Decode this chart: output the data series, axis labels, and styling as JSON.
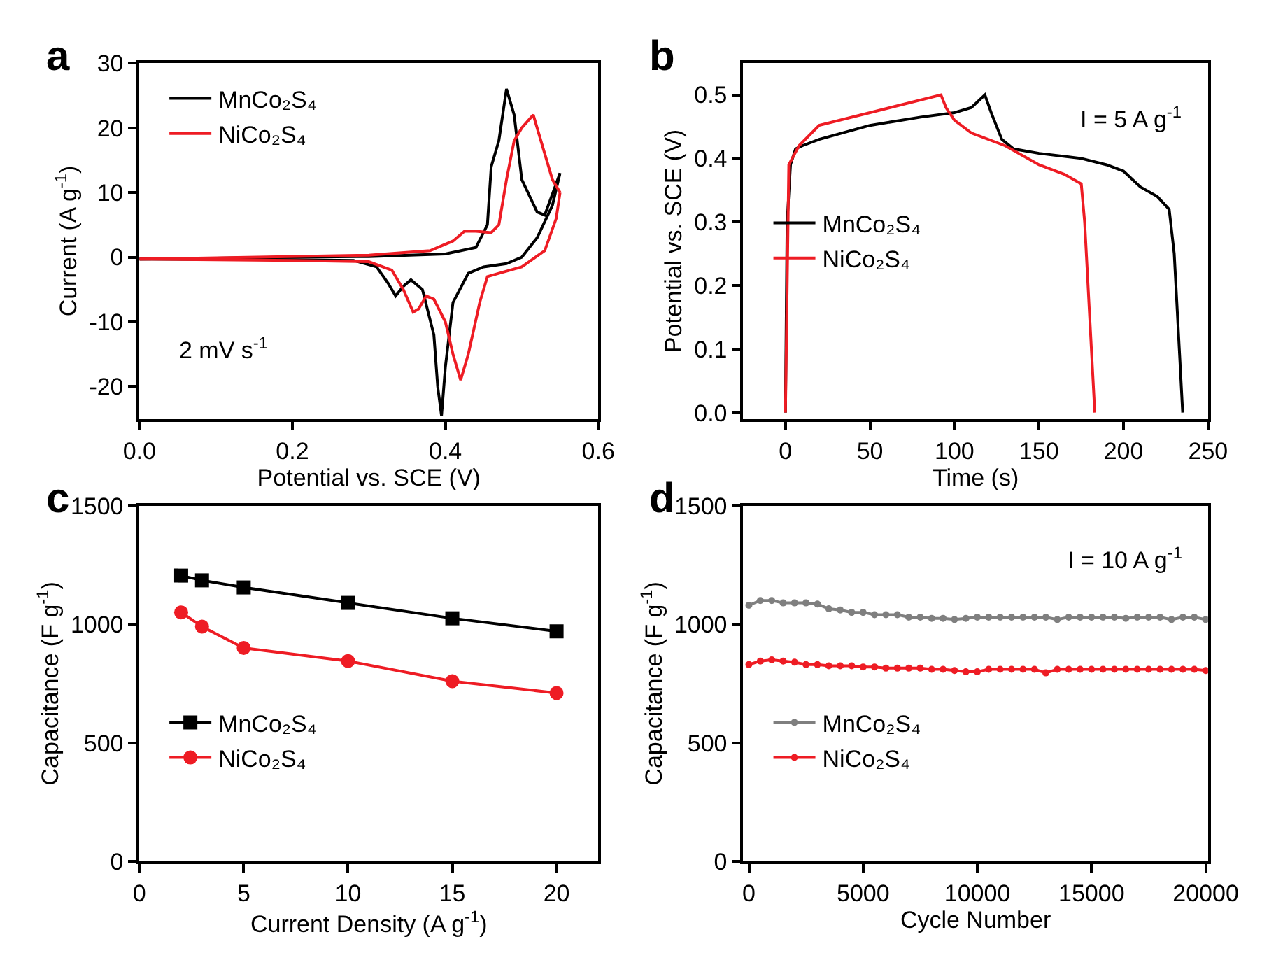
{
  "chart_data": [
    {
      "type": "line",
      "title": "a",
      "xlabel": "Potential vs. SCE (V)",
      "ylabel": "Current (A g$^{-1}$)",
      "xlim": [
        0,
        0.6
      ],
      "xticks": [
        {
          "value": 0,
          "label": "0.0"
        },
        {
          "value": 0.2,
          "label": "0.2"
        },
        {
          "value": 0.4,
          "label": "0.4"
        },
        {
          "value": 0.6,
          "label": "0.6"
        }
      ],
      "ylim": [
        -25,
        30
      ],
      "yticks": [
        -20,
        -10,
        0,
        10,
        20,
        30
      ],
      "legend": "top left",
      "annotations": [
        "2 mV s$^{-1}$"
      ],
      "series": [
        {
          "name": "MnCo₂S₄",
          "color": "#000000",
          "x": [
            0,
            0.2,
            0.3,
            0.4,
            0.44,
            0.455,
            0.46,
            0.47,
            0.48,
            0.49,
            0.5,
            0.52,
            0.53,
            0.55
          ],
          "values": [
            -0.3,
            0,
            0.1,
            0.5,
            1.5,
            5,
            14,
            18,
            26,
            22,
            12,
            7,
            6.5,
            13
          ]
        },
        {
          "color": "#000000",
          "x": [
            0,
            0.2,
            0.28,
            0.31,
            0.325,
            0.335,
            0.345,
            0.355,
            0.37,
            0.385,
            0.39,
            0.395,
            0.4,
            0.41,
            0.43,
            0.45,
            0.48,
            0.5,
            0.52,
            0.54,
            0.55
          ],
          "values": [
            -0.3,
            -0.4,
            -0.5,
            -1.5,
            -4,
            -6,
            -4.5,
            -3.5,
            -5,
            -12,
            -20,
            -24.5,
            -17,
            -7,
            -2.5,
            -1.5,
            -1,
            0,
            3,
            8,
            13
          ]
        },
        {
          "name": "NiCo₂S₄",
          "color": "#ee1c24",
          "x": [
            0,
            0.3,
            0.38,
            0.41,
            0.425,
            0.44,
            0.46,
            0.47,
            0.48,
            0.49,
            0.5,
            0.515,
            0.53,
            0.54,
            0.55
          ],
          "values": [
            -0.3,
            0.3,
            1,
            2.5,
            4,
            4,
            3.8,
            5,
            12,
            18,
            20,
            22,
            16,
            12,
            10
          ]
        },
        {
          "color": "#ee1c24",
          "x": [
            0,
            0.2,
            0.3,
            0.33,
            0.345,
            0.358,
            0.365,
            0.375,
            0.385,
            0.4,
            0.41,
            0.42,
            0.43,
            0.445,
            0.455,
            0.47,
            0.5,
            0.53,
            0.545,
            0.55
          ],
          "values": [
            -0.3,
            -0.5,
            -0.7,
            -2,
            -5,
            -8.5,
            -8,
            -6,
            -6.5,
            -10,
            -15,
            -19,
            -15,
            -7,
            -3,
            -2.5,
            -1.5,
            1,
            6,
            10
          ]
        }
      ]
    },
    {
      "type": "line",
      "title": "b",
      "xlabel": "Time (s)",
      "ylabel": "Potential vs. SCE (V)",
      "xlim": [
        -25,
        250
      ],
      "xticks": [
        0,
        50,
        100,
        150,
        200,
        250
      ],
      "ylim": [
        -0.01,
        0.55
      ],
      "yticks": [
        {
          "value": 0,
          "label": "0.0"
        },
        0.1,
        0.2,
        0.3,
        0.4,
        0.5
      ],
      "legend": "left",
      "annotations": [
        "I = 5 A g$^{-1}$"
      ],
      "series": [
        {
          "name": "MnCo₂S₄",
          "color": "#000000",
          "x": [
            0,
            1,
            3,
            6,
            10,
            20,
            50,
            80,
            100,
            110,
            118,
            122,
            128,
            135,
            150,
            175,
            190,
            200,
            210,
            220,
            227,
            230,
            233,
            235
          ],
          "values": [
            0,
            0.3,
            0.39,
            0.415,
            0.42,
            0.43,
            0.452,
            0.465,
            0.472,
            0.48,
            0.5,
            0.47,
            0.43,
            0.415,
            0.408,
            0.4,
            0.39,
            0.38,
            0.355,
            0.34,
            0.32,
            0.25,
            0.1,
            0
          ]
        },
        {
          "name": "NiCo₂S₄",
          "color": "#ee1c24",
          "x": [
            0,
            2,
            8,
            20,
            50,
            92,
            95,
            100,
            110,
            130,
            150,
            165,
            175,
            177,
            180,
            183
          ],
          "values": [
            0,
            0.39,
            0.42,
            0.452,
            0.472,
            0.5,
            0.48,
            0.46,
            0.44,
            0.42,
            0.39,
            0.375,
            0.36,
            0.3,
            0.15,
            0
          ]
        }
      ]
    },
    {
      "type": "line",
      "title": "c",
      "xlabel": "Current Density (A g$^{-1}$)",
      "ylabel": "Capacitance (F g$^{-1}$)",
      "xlim": [
        0,
        22
      ],
      "xticks": [
        0,
        5,
        10,
        15,
        20
      ],
      "ylim": [
        0,
        1500
      ],
      "yticks": [
        0,
        500,
        1000,
        1500
      ],
      "legend": "bottom left",
      "series": [
        {
          "name": "MnCo₂S₄",
          "color": "#000000",
          "marker": "square",
          "x": [
            2,
            3,
            5,
            10,
            15,
            20
          ],
          "values": [
            1205,
            1185,
            1155,
            1090,
            1025,
            970
          ]
        },
        {
          "name": "NiCo₂S₄",
          "color": "#ee1c24",
          "marker": "circle",
          "x": [
            2,
            3,
            5,
            10,
            15,
            20
          ],
          "values": [
            1050,
            990,
            900,
            845,
            760,
            710
          ]
        }
      ]
    },
    {
      "type": "line",
      "title": "d",
      "xlabel": "Cycle Number",
      "ylabel": "Capacitance (F g$^{-1}$)",
      "xlim": [
        -250,
        20100
      ],
      "xticks": [
        0,
        5000,
        10000,
        15000,
        20000
      ],
      "ylim": [
        0,
        1500
      ],
      "yticks": [
        0,
        500,
        1000,
        1500
      ],
      "legend": "bottom left",
      "annotations": [
        "I = 10 A g$^{-1}$"
      ],
      "series": [
        {
          "name": "MnCo₂S₄",
          "color": "#7f7f7f",
          "marker": "circle",
          "x": [
            0,
            500,
            1000,
            1500,
            2000,
            2500,
            3000,
            3500,
            4000,
            4500,
            5000,
            5500,
            6000,
            6500,
            7000,
            7500,
            8000,
            8500,
            9000,
            9500,
            10000,
            10500,
            11000,
            11500,
            12000,
            12500,
            13000,
            13500,
            14000,
            14500,
            15000,
            15500,
            16000,
            16500,
            17000,
            17500,
            18000,
            18500,
            19000,
            19500,
            20000
          ],
          "values": [
            1080,
            1100,
            1100,
            1090,
            1090,
            1090,
            1085,
            1065,
            1060,
            1050,
            1050,
            1040,
            1040,
            1040,
            1030,
            1030,
            1025,
            1025,
            1020,
            1025,
            1030,
            1030,
            1030,
            1030,
            1030,
            1030,
            1030,
            1020,
            1030,
            1030,
            1030,
            1030,
            1030,
            1025,
            1030,
            1030,
            1030,
            1020,
            1030,
            1030,
            1020
          ]
        },
        {
          "name": "NiCo₂S₄",
          "color": "#ee1c24",
          "marker": "circle",
          "x": [
            0,
            500,
            1000,
            1500,
            2000,
            2500,
            3000,
            3500,
            4000,
            4500,
            5000,
            5500,
            6000,
            6500,
            7000,
            7500,
            8000,
            8500,
            9000,
            9500,
            10000,
            10500,
            11000,
            11500,
            12000,
            12500,
            13000,
            13500,
            14000,
            14500,
            15000,
            15500,
            16000,
            16500,
            17000,
            17500,
            18000,
            18500,
            19000,
            19500,
            20000
          ],
          "values": [
            830,
            845,
            850,
            845,
            840,
            830,
            830,
            825,
            825,
            825,
            820,
            820,
            815,
            815,
            815,
            815,
            810,
            810,
            805,
            800,
            800,
            810,
            810,
            810,
            810,
            810,
            795,
            810,
            810,
            810,
            810,
            810,
            810,
            810,
            810,
            810,
            810,
            810,
            810,
            810,
            805
          ]
        }
      ]
    }
  ]
}
